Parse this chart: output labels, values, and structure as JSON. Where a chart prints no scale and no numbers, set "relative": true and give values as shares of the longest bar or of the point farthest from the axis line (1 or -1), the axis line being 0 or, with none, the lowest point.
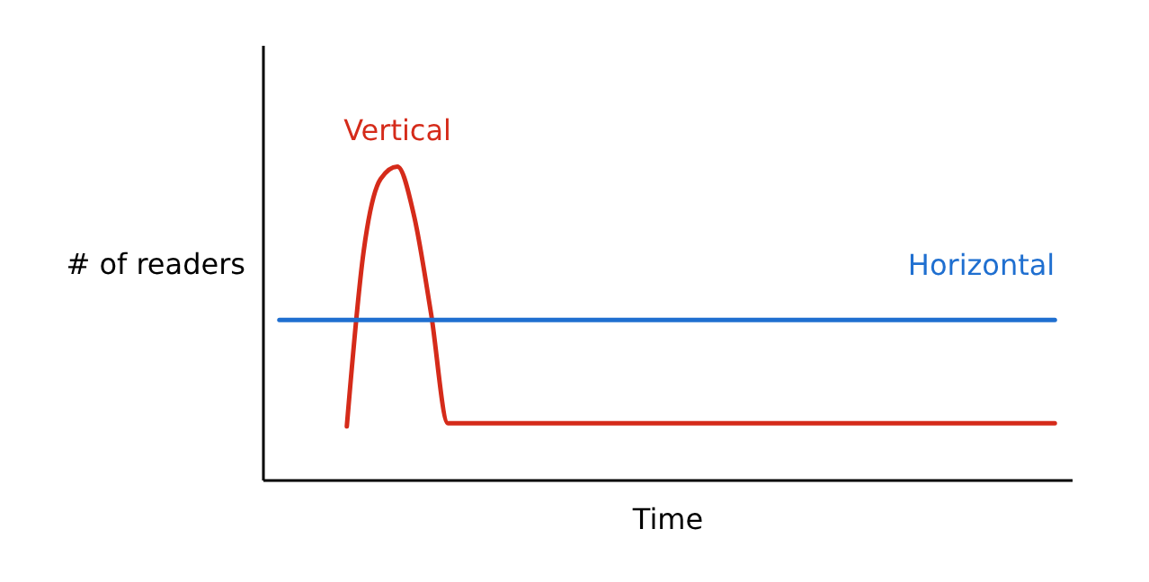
{
  "chart_data": {
    "type": "line",
    "relative": true,
    "xlabel": "Time",
    "ylabel": "# of readers",
    "tick_labels": false,
    "categories": [
      null,
      null,
      null,
      null,
      null,
      null,
      null,
      null,
      null,
      null,
      null,
      null,
      null,
      null,
      null,
      null,
      null,
      null,
      null,
      null,
      null,
      null,
      null,
      null,
      null,
      null,
      null,
      null,
      null,
      null,
      null,
      null,
      null,
      null,
      null,
      null,
      null,
      null,
      null,
      null,
      null,
      null,
      null,
      null,
      null,
      null,
      null
    ],
    "series": [
      {
        "name": "Vertical",
        "color": "#d52b1a",
        "values": [
          null,
          null,
          null,
          null,
          0.17,
          0.73,
          0.96,
          1.0,
          0.84,
          0.53,
          0.18,
          0.18,
          0.18,
          0.18,
          0.18,
          0.18,
          0.18,
          0.18,
          0.18,
          0.18,
          0.18,
          0.18,
          0.18,
          0.18,
          0.18,
          0.18,
          0.18,
          0.18,
          0.18,
          0.18,
          0.18,
          0.18,
          0.18,
          0.18,
          0.18,
          0.18,
          0.18,
          0.18,
          0.18,
          0.18,
          0.18,
          0.18,
          0.18,
          0.18,
          0.18,
          0.18,
          0.18
        ]
      },
      {
        "name": "Horizontal",
        "color": "#1f6fd0",
        "values": [
          0.51,
          0.51,
          0.51,
          0.51,
          0.51,
          0.51,
          0.51,
          0.51,
          0.51,
          0.51,
          0.51,
          0.51,
          0.51,
          0.51,
          0.51,
          0.51,
          0.51,
          0.51,
          0.51,
          0.51,
          0.51,
          0.51,
          0.51,
          0.51,
          0.51,
          0.51,
          0.51,
          0.51,
          0.51,
          0.51,
          0.51,
          0.51,
          0.51,
          0.51,
          0.51,
          0.51,
          0.51,
          0.51,
          0.51,
          0.51,
          0.51,
          0.51,
          0.51,
          0.51,
          0.51,
          0.51,
          0.51
        ]
      }
    ]
  }
}
